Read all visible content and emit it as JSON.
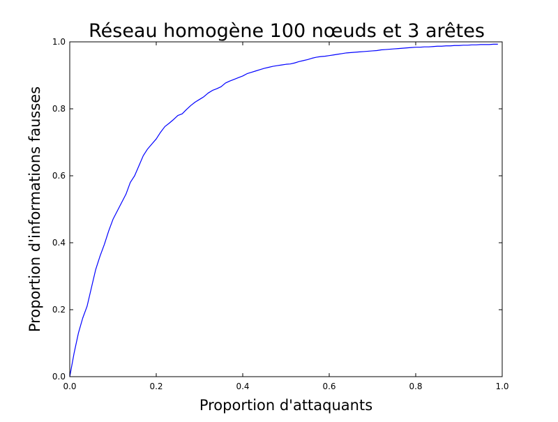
{
  "chart_data": {
    "type": "line",
    "title": "Réseau homogène 100 nœuds et 3 arêtes",
    "xlabel": "Proportion d'attaquants",
    "ylabel": "Proportion d'informations fausses",
    "xlim": [
      0.0,
      1.0
    ],
    "ylim": [
      0.0,
      1.0
    ],
    "xticks": [
      0.0,
      0.2,
      0.4,
      0.6,
      0.8,
      1.0
    ],
    "yticks": [
      0.0,
      0.2,
      0.4,
      0.6,
      0.8,
      1.0
    ],
    "xtick_labels": [
      "0.0",
      "0.2",
      "0.4",
      "0.6",
      "0.8",
      "1.0"
    ],
    "ytick_labels": [
      "0.0",
      "0.2",
      "0.4",
      "0.6",
      "0.8",
      "1.0"
    ],
    "grid": false,
    "series": [
      {
        "color": "#0000ff",
        "x": [
          0.0,
          0.01,
          0.02,
          0.03,
          0.04,
          0.05,
          0.06,
          0.07,
          0.08,
          0.09,
          0.1,
          0.11,
          0.12,
          0.13,
          0.14,
          0.15,
          0.16,
          0.17,
          0.18,
          0.19,
          0.2,
          0.21,
          0.22,
          0.23,
          0.24,
          0.25,
          0.26,
          0.27,
          0.28,
          0.29,
          0.3,
          0.31,
          0.32,
          0.33,
          0.34,
          0.35,
          0.36,
          0.37,
          0.38,
          0.39,
          0.4,
          0.41,
          0.42,
          0.43,
          0.44,
          0.45,
          0.46,
          0.47,
          0.48,
          0.49,
          0.5,
          0.51,
          0.52,
          0.53,
          0.54,
          0.55,
          0.56,
          0.57,
          0.58,
          0.59,
          0.6,
          0.61,
          0.62,
          0.63,
          0.64,
          0.65,
          0.66,
          0.67,
          0.68,
          0.69,
          0.7,
          0.71,
          0.72,
          0.73,
          0.74,
          0.75,
          0.76,
          0.77,
          0.78,
          0.79,
          0.8,
          0.81,
          0.82,
          0.83,
          0.84,
          0.85,
          0.86,
          0.87,
          0.88,
          0.89,
          0.9,
          0.91,
          0.92,
          0.93,
          0.94,
          0.95,
          0.96,
          0.97,
          0.98,
          0.99
        ],
        "y": [
          0.0,
          0.07,
          0.13,
          0.175,
          0.21,
          0.265,
          0.32,
          0.36,
          0.395,
          0.435,
          0.47,
          0.495,
          0.52,
          0.545,
          0.58,
          0.6,
          0.63,
          0.66,
          0.68,
          0.695,
          0.71,
          0.73,
          0.747,
          0.757,
          0.768,
          0.78,
          0.785,
          0.798,
          0.81,
          0.82,
          0.828,
          0.836,
          0.847,
          0.855,
          0.86,
          0.866,
          0.877,
          0.883,
          0.888,
          0.893,
          0.898,
          0.905,
          0.909,
          0.913,
          0.917,
          0.921,
          0.924,
          0.927,
          0.929,
          0.931,
          0.933,
          0.934,
          0.937,
          0.941,
          0.944,
          0.947,
          0.951,
          0.954,
          0.956,
          0.957,
          0.959,
          0.961,
          0.963,
          0.965,
          0.967,
          0.968,
          0.969,
          0.97,
          0.971,
          0.972,
          0.973,
          0.974,
          0.976,
          0.977,
          0.978,
          0.979,
          0.98,
          0.981,
          0.982,
          0.983,
          0.984,
          0.984,
          0.985,
          0.985,
          0.986,
          0.987,
          0.987,
          0.988,
          0.988,
          0.989,
          0.989,
          0.99,
          0.99,
          0.991,
          0.991,
          0.992,
          0.992,
          0.992,
          0.993,
          0.993
        ]
      }
    ]
  }
}
